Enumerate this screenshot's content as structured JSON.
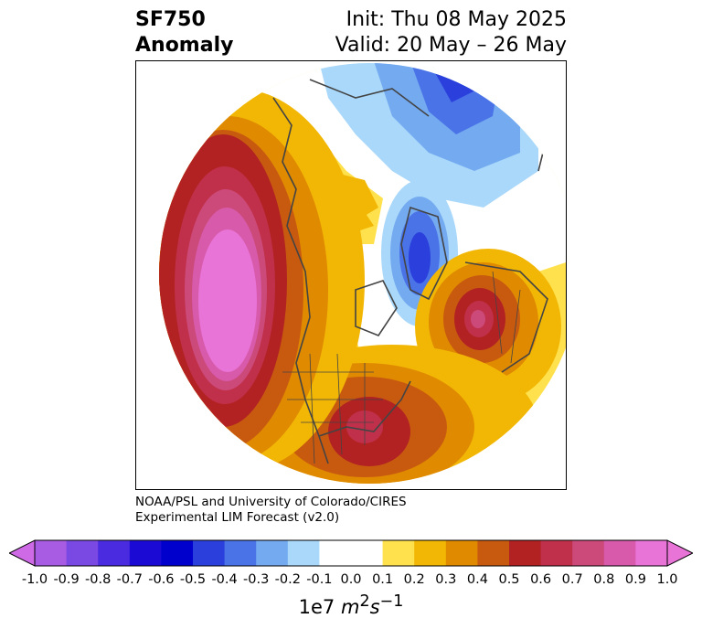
{
  "header": {
    "left_line1": "SF750",
    "left_line2": "Anomaly",
    "right_line1": "Init: Thu 08 May 2025",
    "right_line2": "Valid: 20 May – 26 May"
  },
  "credit": {
    "line1": "NOAA/PSL and University of Colorado/CIRES",
    "line2": "Experimental LIM Forecast (v2.0)"
  },
  "colorbar": {
    "ticks": [
      "-1.0",
      "-0.9",
      "-0.8",
      "-0.7",
      "-0.6",
      "-0.5",
      "-0.4",
      "-0.3",
      "-0.2",
      "-0.1",
      "0.0",
      "0.1",
      "0.2",
      "0.3",
      "0.4",
      "0.5",
      "0.6",
      "0.7",
      "0.8",
      "0.9",
      "1.0"
    ],
    "colors": [
      "#9b4ee0",
      "#6b3be0",
      "#3a1fd6",
      "#0000cc",
      "#2a3fdc",
      "#4a73e8",
      "#74aaf0",
      "#a9d8fa",
      "#ffffff",
      "#ffffff",
      "#ffe14d",
      "#f2b705",
      "#e08a00",
      "#c85a10",
      "#b22222",
      "#c0304a",
      "#cc4a7a",
      "#d85aaa",
      "#e874d8"
    ],
    "under_color": "#cf6ae6",
    "over_color": "#e874d8",
    "units_prefix": "1e7 ",
    "units_m": "m",
    "units_m_exp": "2",
    "units_s": "s",
    "units_s_exp": "−1"
  }
}
